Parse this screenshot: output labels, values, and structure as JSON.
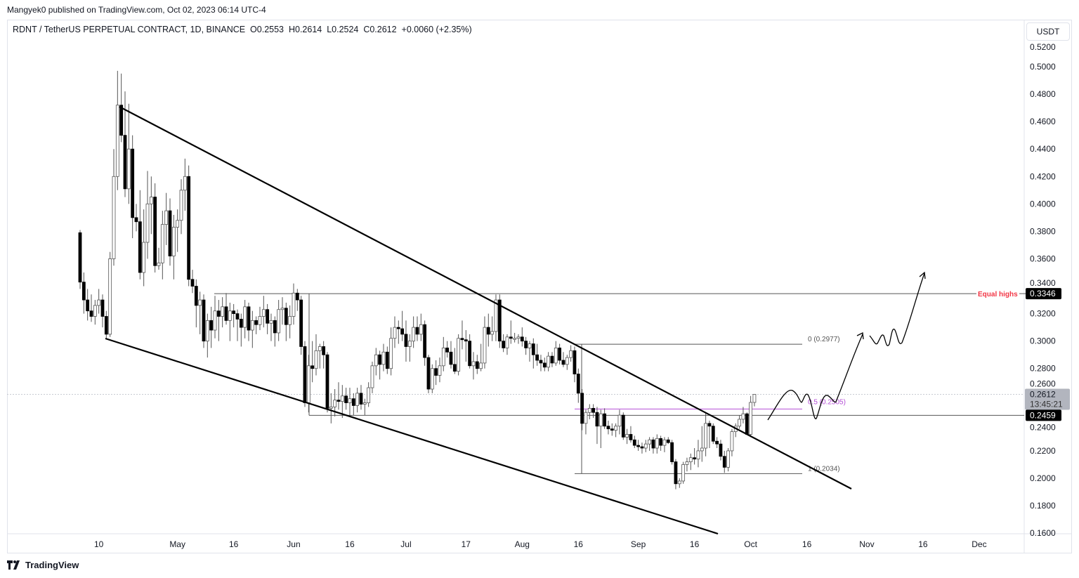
{
  "publication": "Mangyek0 published on TradingView.com, Oct 02, 2023 06:14 UTC-4",
  "legend": {
    "symbol": "RDNT / TetherUS PERPETUAL CONTRACT, 1D, BINANCE",
    "open": "O0.2553",
    "high": "H0.2614",
    "low": "L0.2524",
    "close": "C0.2612",
    "change": "+0.0060 (+2.35%)"
  },
  "currency_button": "USDT",
  "brand": "TradingView",
  "colors": {
    "up_body": "#ffffff",
    "down_body": "#000000",
    "wick": "#555555",
    "fib_mid": "#b44fd6",
    "equal_highs": "#f23645",
    "last_price_bg": "#b2b5be"
  },
  "annotations": {
    "equal_highs": {
      "label": "Equal highs",
      "price": 0.3346,
      "price_label": "0.3346"
    },
    "support": {
      "price": 0.2459,
      "price_label": "0.2459"
    },
    "last_price": {
      "price": 0.2612,
      "price_label": "0.2612",
      "countdown": "13:45:21"
    },
    "fib": [
      {
        "level": "0 (0.2977)",
        "price": 0.2977
      },
      {
        "level": "0.5 (0.2505)",
        "price": 0.2505
      },
      {
        "level": "1 (0.2034)",
        "price": 0.2034
      }
    ]
  },
  "chart_data": {
    "type": "candlestick",
    "title": "",
    "start_date": "2023-04-05",
    "interval": "1D",
    "ylim": [
      0.155,
      0.525
    ],
    "y_ticks": [
      "0.5200",
      "0.5000",
      "0.4800",
      "0.4600",
      "0.4400",
      "0.4200",
      "0.4000",
      "0.3800",
      "0.3600",
      "0.3400",
      "0.3200",
      "0.3000",
      "0.2800",
      "0.2600",
      "0.2400",
      "0.2200",
      "0.2000",
      "0.1800",
      "0.1600"
    ],
    "x_ticks": [
      {
        "label": "10",
        "date": "2023-04-10"
      },
      {
        "label": "May",
        "date": "2023-05-01"
      },
      {
        "label": "16",
        "date": "2023-05-16"
      },
      {
        "label": "Jun",
        "date": "2023-06-01"
      },
      {
        "label": "16",
        "date": "2023-06-16"
      },
      {
        "label": "Jul",
        "date": "2023-07-01"
      },
      {
        "label": "17",
        "date": "2023-07-17"
      },
      {
        "label": "Aug",
        "date": "2023-08-01"
      },
      {
        "label": "16",
        "date": "2023-08-16"
      },
      {
        "label": "Sep",
        "date": "2023-09-01"
      },
      {
        "label": "16",
        "date": "2023-09-16"
      },
      {
        "label": "Oct",
        "date": "2023-10-01"
      },
      {
        "label": "16",
        "date": "2023-10-16"
      },
      {
        "label": "Nov",
        "date": "2023-11-01"
      },
      {
        "label": "16",
        "date": "2023-11-16"
      },
      {
        "label": "Dec",
        "date": "2023-12-01"
      }
    ],
    "ohlc": [
      [
        0.379,
        0.381,
        0.338,
        0.343
      ],
      [
        0.343,
        0.35,
        0.32,
        0.33
      ],
      [
        0.33,
        0.338,
        0.315,
        0.322
      ],
      [
        0.322,
        0.334,
        0.314,
        0.318
      ],
      [
        0.318,
        0.33,
        0.312,
        0.326
      ],
      [
        0.326,
        0.338,
        0.32,
        0.33
      ],
      [
        0.33,
        0.334,
        0.31,
        0.318
      ],
      [
        0.318,
        0.322,
        0.302,
        0.305
      ],
      [
        0.305,
        0.365,
        0.303,
        0.36
      ],
      [
        0.36,
        0.44,
        0.355,
        0.42
      ],
      [
        0.42,
        0.497,
        0.41,
        0.472
      ],
      [
        0.472,
        0.495,
        0.445,
        0.45
      ],
      [
        0.45,
        0.482,
        0.405,
        0.411
      ],
      [
        0.411,
        0.473,
        0.4,
        0.44
      ],
      [
        0.44,
        0.45,
        0.375,
        0.39
      ],
      [
        0.39,
        0.4,
        0.38,
        0.387
      ],
      [
        0.387,
        0.41,
        0.345,
        0.35
      ],
      [
        0.35,
        0.396,
        0.34,
        0.372
      ],
      [
        0.372,
        0.424,
        0.36,
        0.4
      ],
      [
        0.4,
        0.42,
        0.378,
        0.405
      ],
      [
        0.405,
        0.415,
        0.35,
        0.355
      ],
      [
        0.355,
        0.368,
        0.352,
        0.357
      ],
      [
        0.357,
        0.395,
        0.345,
        0.385
      ],
      [
        0.385,
        0.408,
        0.37,
        0.395
      ],
      [
        0.395,
        0.404,
        0.355,
        0.362
      ],
      [
        0.362,
        0.392,
        0.345,
        0.383
      ],
      [
        0.383,
        0.396,
        0.365,
        0.388
      ],
      [
        0.388,
        0.418,
        0.378,
        0.41
      ],
      [
        0.41,
        0.433,
        0.395,
        0.42
      ],
      [
        0.42,
        0.428,
        0.34,
        0.345
      ],
      [
        0.345,
        0.352,
        0.335,
        0.34
      ],
      [
        0.34,
        0.345,
        0.31,
        0.326
      ],
      [
        0.326,
        0.336,
        0.305,
        0.33
      ],
      [
        0.33,
        0.334,
        0.295,
        0.3
      ],
      [
        0.3,
        0.32,
        0.288,
        0.315
      ],
      [
        0.315,
        0.325,
        0.295,
        0.308
      ],
      [
        0.308,
        0.333,
        0.302,
        0.322
      ],
      [
        0.322,
        0.33,
        0.3,
        0.318
      ],
      [
        0.318,
        0.332,
        0.31,
        0.325
      ],
      [
        0.325,
        0.335,
        0.312,
        0.315
      ],
      [
        0.315,
        0.328,
        0.3,
        0.322
      ],
      [
        0.322,
        0.327,
        0.31,
        0.32
      ],
      [
        0.32,
        0.323,
        0.3,
        0.316
      ],
      [
        0.316,
        0.32,
        0.296,
        0.31
      ],
      [
        0.31,
        0.33,
        0.302,
        0.325
      ],
      [
        0.325,
        0.328,
        0.3,
        0.308
      ],
      [
        0.308,
        0.322,
        0.295,
        0.315
      ],
      [
        0.315,
        0.318,
        0.305,
        0.312
      ],
      [
        0.312,
        0.325,
        0.308,
        0.318
      ],
      [
        0.318,
        0.333,
        0.31,
        0.323
      ],
      [
        0.323,
        0.327,
        0.305,
        0.313
      ],
      [
        0.313,
        0.32,
        0.3,
        0.315
      ],
      [
        0.315,
        0.318,
        0.296,
        0.306
      ],
      [
        0.306,
        0.33,
        0.3,
        0.323
      ],
      [
        0.323,
        0.332,
        0.312,
        0.324
      ],
      [
        0.324,
        0.328,
        0.3,
        0.312
      ],
      [
        0.312,
        0.326,
        0.302,
        0.318
      ],
      [
        0.318,
        0.342,
        0.312,
        0.335
      ],
      [
        0.335,
        0.338,
        0.322,
        0.33
      ],
      [
        0.33,
        0.333,
        0.29,
        0.296
      ],
      [
        0.296,
        0.3,
        0.252,
        0.255
      ],
      [
        0.255,
        0.29,
        0.248,
        0.282
      ],
      [
        0.282,
        0.3,
        0.27,
        0.28
      ],
      [
        0.28,
        0.305,
        0.275,
        0.293
      ],
      [
        0.293,
        0.298,
        0.28,
        0.296
      ],
      [
        0.296,
        0.3,
        0.28,
        0.29
      ],
      [
        0.29,
        0.292,
        0.248,
        0.251
      ],
      [
        0.251,
        0.262,
        0.24,
        0.252
      ],
      [
        0.252,
        0.265,
        0.245,
        0.257
      ],
      [
        0.257,
        0.27,
        0.25,
        0.256
      ],
      [
        0.256,
        0.268,
        0.244,
        0.26
      ],
      [
        0.26,
        0.266,
        0.25,
        0.255
      ],
      [
        0.255,
        0.266,
        0.245,
        0.258
      ],
      [
        0.258,
        0.262,
        0.246,
        0.253
      ],
      [
        0.253,
        0.266,
        0.248,
        0.262
      ],
      [
        0.262,
        0.268,
        0.25,
        0.254
      ],
      [
        0.254,
        0.258,
        0.246,
        0.255
      ],
      [
        0.255,
        0.27,
        0.252,
        0.266
      ],
      [
        0.266,
        0.285,
        0.262,
        0.282
      ],
      [
        0.282,
        0.295,
        0.275,
        0.29
      ],
      [
        0.29,
        0.293,
        0.272,
        0.283
      ],
      [
        0.283,
        0.298,
        0.278,
        0.292
      ],
      [
        0.292,
        0.296,
        0.276,
        0.28
      ],
      [
        0.28,
        0.31,
        0.275,
        0.302
      ],
      [
        0.302,
        0.318,
        0.295,
        0.31
      ],
      [
        0.31,
        0.315,
        0.298,
        0.309
      ],
      [
        0.309,
        0.322,
        0.3,
        0.305
      ],
      [
        0.305,
        0.315,
        0.285,
        0.296
      ],
      [
        0.296,
        0.305,
        0.285,
        0.3
      ],
      [
        0.3,
        0.318,
        0.295,
        0.31
      ],
      [
        0.31,
        0.318,
        0.3,
        0.305
      ],
      [
        0.305,
        0.32,
        0.3,
        0.312
      ],
      [
        0.312,
        0.315,
        0.282,
        0.288
      ],
      [
        0.288,
        0.29,
        0.262,
        0.265
      ],
      [
        0.265,
        0.283,
        0.262,
        0.28
      ],
      [
        0.28,
        0.286,
        0.268,
        0.275
      ],
      [
        0.275,
        0.288,
        0.27,
        0.282
      ],
      [
        0.282,
        0.303,
        0.278,
        0.295
      ],
      [
        0.295,
        0.3,
        0.288,
        0.292
      ],
      [
        0.292,
        0.3,
        0.28,
        0.283
      ],
      [
        0.283,
        0.295,
        0.276,
        0.278
      ],
      [
        0.278,
        0.305,
        0.275,
        0.302
      ],
      [
        0.302,
        0.315,
        0.294,
        0.301
      ],
      [
        0.301,
        0.308,
        0.285,
        0.3
      ],
      [
        0.3,
        0.305,
        0.28,
        0.282
      ],
      [
        0.282,
        0.292,
        0.272,
        0.285
      ],
      [
        0.285,
        0.29,
        0.276,
        0.28
      ],
      [
        0.28,
        0.298,
        0.278,
        0.284
      ],
      [
        0.284,
        0.318,
        0.28,
        0.31
      ],
      [
        0.31,
        0.32,
        0.296,
        0.305
      ],
      [
        0.305,
        0.318,
        0.3,
        0.307
      ],
      [
        0.307,
        0.334,
        0.3,
        0.33
      ],
      [
        0.33,
        0.334,
        0.295,
        0.3
      ],
      [
        0.3,
        0.305,
        0.292,
        0.295
      ],
      [
        0.295,
        0.305,
        0.29,
        0.303
      ],
      [
        0.303,
        0.315,
        0.298,
        0.302
      ],
      [
        0.302,
        0.306,
        0.299,
        0.302
      ],
      [
        0.302,
        0.305,
        0.298,
        0.303
      ],
      [
        0.303,
        0.31,
        0.296,
        0.3
      ],
      [
        0.3,
        0.303,
        0.29,
        0.295
      ],
      [
        0.295,
        0.3,
        0.285,
        0.298
      ],
      [
        0.298,
        0.302,
        0.28,
        0.29
      ],
      [
        0.29,
        0.298,
        0.282,
        0.286
      ],
      [
        0.286,
        0.29,
        0.278,
        0.284
      ],
      [
        0.284,
        0.288,
        0.278,
        0.281
      ],
      [
        0.281,
        0.292,
        0.278,
        0.289
      ],
      [
        0.289,
        0.292,
        0.281,
        0.284
      ],
      [
        0.284,
        0.3,
        0.282,
        0.295
      ],
      [
        0.295,
        0.298,
        0.283,
        0.286
      ],
      [
        0.286,
        0.292,
        0.281,
        0.283
      ],
      [
        0.283,
        0.29,
        0.279,
        0.288
      ],
      [
        0.288,
        0.297,
        0.285,
        0.293
      ],
      [
        0.293,
        0.296,
        0.27,
        0.276
      ],
      [
        0.276,
        0.28,
        0.255,
        0.262
      ],
      [
        0.262,
        0.265,
        0.235,
        0.24
      ],
      [
        0.24,
        0.25,
        0.232,
        0.248
      ],
      [
        0.248,
        0.254,
        0.243,
        0.251
      ],
      [
        0.251,
        0.254,
        0.244,
        0.248
      ],
      [
        0.248,
        0.252,
        0.225,
        0.238
      ],
      [
        0.238,
        0.25,
        0.222,
        0.247
      ],
      [
        0.247,
        0.251,
        0.236,
        0.238
      ],
      [
        0.238,
        0.242,
        0.232,
        0.236
      ],
      [
        0.236,
        0.24,
        0.231,
        0.235
      ],
      [
        0.235,
        0.24,
        0.23,
        0.238
      ],
      [
        0.238,
        0.25,
        0.232,
        0.246
      ],
      [
        0.246,
        0.248,
        0.228,
        0.23
      ],
      [
        0.23,
        0.236,
        0.225,
        0.232
      ],
      [
        0.232,
        0.238,
        0.226,
        0.228
      ],
      [
        0.228,
        0.231,
        0.222,
        0.224
      ],
      [
        0.224,
        0.228,
        0.22,
        0.223
      ],
      [
        0.223,
        0.226,
        0.218,
        0.222
      ],
      [
        0.222,
        0.228,
        0.219,
        0.225
      ],
      [
        0.225,
        0.23,
        0.22,
        0.228
      ],
      [
        0.228,
        0.23,
        0.218,
        0.222
      ],
      [
        0.222,
        0.232,
        0.218,
        0.229
      ],
      [
        0.229,
        0.231,
        0.22,
        0.224
      ],
      [
        0.224,
        0.23,
        0.219,
        0.228
      ],
      [
        0.228,
        0.23,
        0.225,
        0.226
      ],
      [
        0.226,
        0.228,
        0.21,
        0.212
      ],
      [
        0.212,
        0.214,
        0.192,
        0.196
      ],
      [
        0.196,
        0.2,
        0.193,
        0.198
      ],
      [
        0.198,
        0.212,
        0.196,
        0.21
      ],
      [
        0.21,
        0.215,
        0.205,
        0.212
      ],
      [
        0.212,
        0.218,
        0.206,
        0.215
      ],
      [
        0.215,
        0.222,
        0.21,
        0.214
      ],
      [
        0.214,
        0.228,
        0.208,
        0.22
      ],
      [
        0.22,
        0.238,
        0.212,
        0.222
      ],
      [
        0.222,
        0.248,
        0.216,
        0.24
      ],
      [
        0.24,
        0.242,
        0.222,
        0.238
      ],
      [
        0.238,
        0.24,
        0.225,
        0.227
      ],
      [
        0.227,
        0.23,
        0.222,
        0.225
      ],
      [
        0.225,
        0.228,
        0.213,
        0.216
      ],
      [
        0.216,
        0.22,
        0.204,
        0.208
      ],
      [
        0.208,
        0.222,
        0.205,
        0.22
      ],
      [
        0.22,
        0.236,
        0.216,
        0.234
      ],
      [
        0.234,
        0.24,
        0.23,
        0.238
      ],
      [
        0.238,
        0.246,
        0.236,
        0.243
      ],
      [
        0.243,
        0.252,
        0.24,
        0.247
      ],
      [
        0.247,
        0.248,
        0.232,
        0.232
      ],
      [
        0.232,
        0.26,
        0.23,
        0.2553
      ],
      [
        0.2553,
        0.2614,
        0.2524,
        0.2612
      ]
    ]
  }
}
